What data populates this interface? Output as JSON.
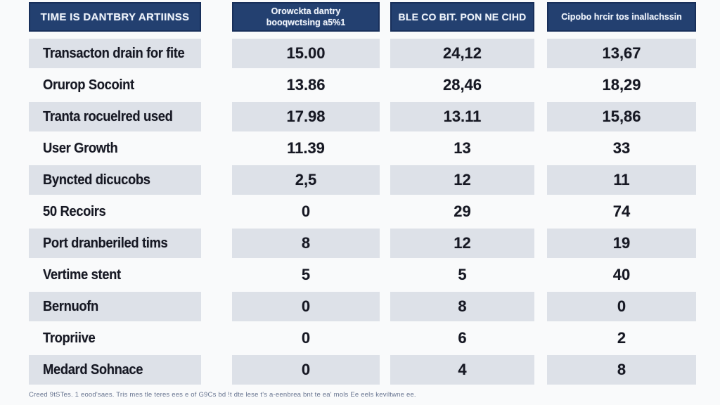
{
  "chart_data": {
    "type": "table",
    "columns": [
      "TIME IS DANTBRY ARTIINSS",
      "Orowckta dantry booqwctsing a5%1",
      "BLE CO BIT. PON NE CIHD",
      "Cipobo hrcir tos inallachssin"
    ],
    "rows": [
      {
        "label": "Transacton drain for fite",
        "values": [
          "15.00",
          "24,12",
          "13,67"
        ]
      },
      {
        "label": "Orurop Socoint",
        "values": [
          "13.86",
          "28,46",
          "18,29"
        ]
      },
      {
        "label": "Tranta rocuelred used",
        "values": [
          "17.98",
          "13.11",
          "15,86"
        ]
      },
      {
        "label": "User Growth",
        "values": [
          "11.39",
          "13",
          "33"
        ]
      },
      {
        "label": "Byncted dicucobs",
        "values": [
          "2,5",
          "12",
          "11"
        ]
      },
      {
        "label": "50 Recoirs",
        "values": [
          "0",
          "29",
          "74"
        ]
      },
      {
        "label": "Port dranberiled tims",
        "values": [
          "8",
          "12",
          "19"
        ]
      },
      {
        "label": "Vertime stent",
        "values": [
          "5",
          "5",
          "40"
        ]
      },
      {
        "label": "Bernuofn",
        "values": [
          "0",
          "8",
          "0"
        ]
      },
      {
        "label": "Tropriive",
        "values": [
          "0",
          "6",
          "2"
        ]
      },
      {
        "label": "Medard Sohnace",
        "values": [
          "0",
          "4",
          "8"
        ]
      }
    ]
  },
  "footnote": "Creed 9tSTes. 1 eood'saes. Tris mes tle teres ees e of G9Cs bd !t dte lese t's a-eenbrea bnt te ea' mols Ee eels keviltwne ee.",
  "colors": {
    "header_bg": "#234070",
    "header_border": "#182f5a",
    "header_text": "#eef3fb",
    "row_shaded": "#dde1e8",
    "page_bg": "#f9fafb",
    "cell_text": "#161823",
    "footnote_text": "#66738f"
  }
}
